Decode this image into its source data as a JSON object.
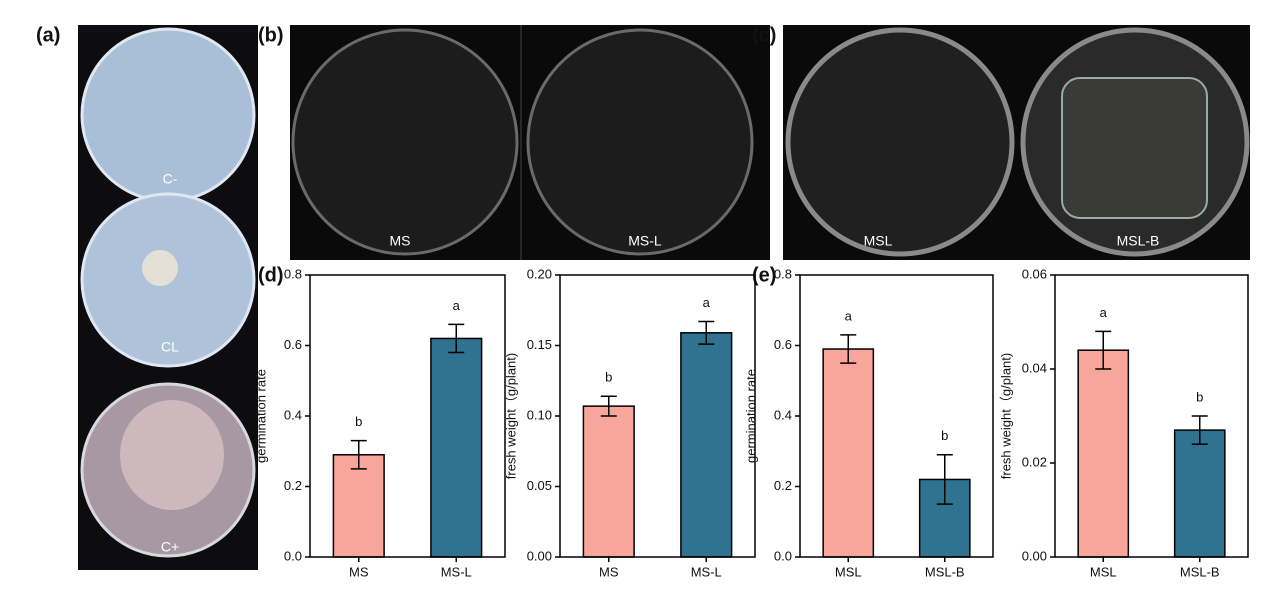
{
  "photos": {
    "a": {
      "label": "(a)",
      "plates": [
        "C-",
        "CL",
        "C+"
      ]
    },
    "b": {
      "label": "(b)",
      "plates": [
        "MS",
        "MS-L"
      ]
    },
    "c": {
      "label": "(c)",
      "plates": [
        "MSL",
        "MSL-B"
      ]
    }
  },
  "panels": [
    "(d)",
    "(e)"
  ],
  "chart_data": [
    {
      "type": "bar",
      "ylabel": "germination rate",
      "categories": [
        "MS",
        "MS-L"
      ],
      "values": [
        0.29,
        0.62
      ],
      "errors": [
        0.04,
        0.04
      ],
      "annotations": [
        "b",
        "a"
      ],
      "colors": [
        "#f8a59c",
        "#2f7391"
      ],
      "ylim": [
        0,
        0.8
      ],
      "yticks": [
        {
          "value": 0,
          "label": "0.0"
        },
        0.2,
        0.4,
        0.6,
        0.8
      ]
    },
    {
      "type": "bar",
      "ylabel": "fresh weight（g/plant)",
      "categories": [
        "MS",
        "MS-L"
      ],
      "values": [
        0.107,
        0.159
      ],
      "errors": [
        0.007,
        0.008
      ],
      "annotations": [
        "b",
        "a"
      ],
      "colors": [
        "#f8a59c",
        "#2f7391"
      ],
      "ylim": [
        0,
        0.2
      ],
      "yticks": [
        {
          "value": 0,
          "label": "0.00"
        },
        {
          "value": 0.05,
          "label": "0.05"
        },
        {
          "value": 0.1,
          "label": "0.10"
        },
        {
          "value": 0.15,
          "label": "0.15"
        },
        {
          "value": 0.2,
          "label": "0.20"
        }
      ]
    },
    {
      "type": "bar",
      "ylabel": "germination rate",
      "categories": [
        "MSL",
        "MSL-B"
      ],
      "values": [
        0.59,
        0.22
      ],
      "errors": [
        0.04,
        0.07
      ],
      "annotations": [
        "a",
        "b"
      ],
      "colors": [
        "#f8a59c",
        "#2f7391"
      ],
      "ylim": [
        0,
        0.8
      ],
      "yticks": [
        {
          "value": 0,
          "label": "0.0"
        },
        0.2,
        0.4,
        0.6,
        0.8
      ]
    },
    {
      "type": "bar",
      "ylabel": "fresh weight（g/plant)",
      "categories": [
        "MSL",
        "MSL-B"
      ],
      "values": [
        0.044,
        0.027
      ],
      "errors": [
        0.004,
        0.003
      ],
      "annotations": [
        "a",
        "b"
      ],
      "colors": [
        "#f8a59c",
        "#2f7391"
      ],
      "ylim": [
        0,
        0.06
      ],
      "yticks": [
        {
          "value": 0,
          "label": "0.00"
        },
        0.02,
        0.04,
        0.06
      ]
    }
  ]
}
